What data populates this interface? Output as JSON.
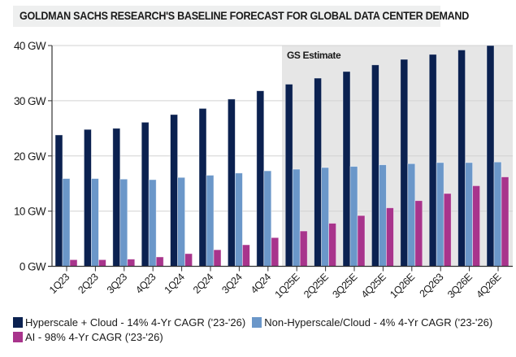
{
  "chart_data": {
    "type": "bar",
    "title": "GOLDMAN SACHS RESEARCH'S BASELINE FORECAST FOR GLOBAL DATA CENTER DEMAND",
    "xlabel": "",
    "ylabel": "",
    "ylim": [
      0,
      40
    ],
    "yticks": [
      0,
      10,
      20,
      30,
      40
    ],
    "ytick_labels": [
      "0 GW",
      "10 GW",
      "20 GW",
      "30 GW",
      "40 GW"
    ],
    "grid": true,
    "categories": [
      "1Q23",
      "2Q23",
      "3Q23",
      "4Q23",
      "1Q24",
      "2Q24",
      "3Q24",
      "4Q24",
      "1Q25E",
      "2Q25E",
      "3Q25E",
      "4Q25E",
      "1Q26E",
      "2Q263",
      "3Q26E",
      "4Q26E"
    ],
    "series": [
      {
        "name": "Hyperscale + Cloud - 14% 4-Yr CAGR ('23-'26)",
        "color": "#0b2150",
        "values": [
          23.8,
          24.8,
          25.0,
          26.1,
          27.5,
          28.6,
          30.3,
          31.8,
          33.0,
          34.1,
          35.3,
          36.5,
          37.5,
          38.4,
          39.2,
          40.0
        ]
      },
      {
        "name": "Non-Hyperscale/Cloud - 4% 4-Yr CAGR ('23-'26)",
        "color": "#6b97c9",
        "values": [
          15.9,
          15.9,
          15.8,
          15.7,
          16.1,
          16.5,
          16.9,
          17.3,
          17.6,
          17.9,
          18.1,
          18.4,
          18.6,
          18.8,
          18.8,
          18.9
        ]
      },
      {
        "name": "AI - 98% 4-Yr CAGR ('23-'26)",
        "color": "#a8348c",
        "values": [
          1.2,
          1.2,
          1.3,
          1.7,
          2.3,
          3.0,
          3.9,
          5.2,
          6.4,
          7.8,
          9.2,
          10.6,
          11.9,
          13.2,
          14.6,
          16.2
        ]
      }
    ],
    "annotations": [
      {
        "text": "GS Estimate",
        "shaded_from_category": "1Q25E",
        "shaded_to_category": "4Q26E",
        "shade_color": "#e6e6e6"
      }
    ],
    "legend_position": "bottom-left"
  }
}
